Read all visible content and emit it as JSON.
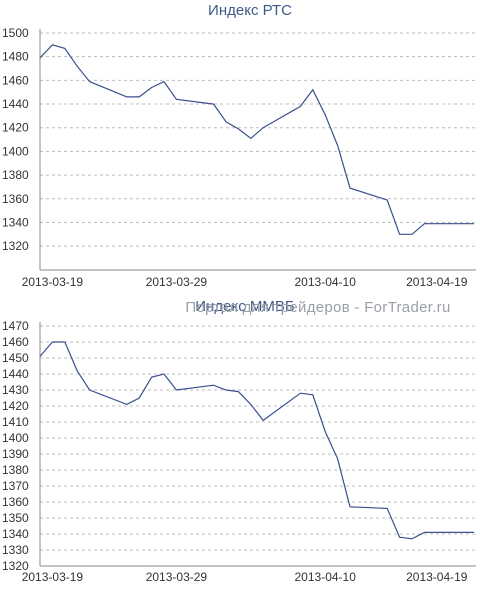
{
  "watermark": "Портал для трейдеров - ForTrader.ru",
  "chart_data": [
    {
      "type": "line",
      "title": "Индекс РТС",
      "x_tick_labels": [
        "2013-03-19",
        "2013-03-29",
        "2013-04-10",
        "2013-04-19"
      ],
      "x_tick_dates": [
        "2013-03-19",
        "2013-03-29",
        "2013-04-10",
        "2013-04-19"
      ],
      "ylim": [
        1310,
        1500
      ],
      "y_ticks": [
        1320,
        1340,
        1360,
        1380,
        1400,
        1420,
        1440,
        1460,
        1480,
        1500
      ],
      "grid": true,
      "series": [
        {
          "x": [
            "2013-03-18",
            "2013-03-19",
            "2013-03-20",
            "2013-03-21",
            "2013-03-22",
            "2013-03-25",
            "2013-03-26",
            "2013-03-27",
            "2013-03-28",
            "2013-03-29",
            "2013-04-01",
            "2013-04-02",
            "2013-04-03",
            "2013-04-04",
            "2013-04-05",
            "2013-04-08",
            "2013-04-09",
            "2013-04-10",
            "2013-04-11",
            "2013-04-12",
            "2013-04-15",
            "2013-04-16",
            "2013-04-17",
            "2013-04-18",
            "2013-04-19",
            "2013-04-22"
          ],
          "values": [
            1479,
            1490,
            1487,
            1472,
            1459,
            1446,
            1446,
            1454,
            1459,
            1444,
            1440,
            1425,
            1419,
            1411,
            1420,
            1438,
            1452,
            1431,
            1405,
            1369,
            1359,
            1330,
            1330,
            1339,
            1339,
            1339
          ]
        }
      ]
    },
    {
      "type": "line",
      "title": "Индекс ММВБ",
      "x_tick_labels": [
        "2013-03-19",
        "2013-03-29",
        "2013-04-10",
        "2013-04-19"
      ],
      "x_tick_dates": [
        "2013-03-19",
        "2013-03-29",
        "2013-04-10",
        "2013-04-19"
      ],
      "ylim": [
        1320,
        1470
      ],
      "y_ticks": [
        1320,
        1330,
        1340,
        1350,
        1360,
        1370,
        1380,
        1390,
        1400,
        1410,
        1420,
        1430,
        1440,
        1450,
        1460,
        1470
      ],
      "grid": true,
      "series": [
        {
          "x": [
            "2013-03-18",
            "2013-03-19",
            "2013-03-20",
            "2013-03-21",
            "2013-03-22",
            "2013-03-25",
            "2013-03-26",
            "2013-03-27",
            "2013-03-28",
            "2013-03-29",
            "2013-04-01",
            "2013-04-02",
            "2013-04-03",
            "2013-04-04",
            "2013-04-05",
            "2013-04-08",
            "2013-04-09",
            "2013-04-10",
            "2013-04-11",
            "2013-04-12",
            "2013-04-15",
            "2013-04-16",
            "2013-04-17",
            "2013-04-18",
            "2013-04-19",
            "2013-04-22"
          ],
          "values": [
            1451,
            1460,
            1460,
            1442,
            1430,
            1421,
            1425,
            1438,
            1440,
            1430,
            1433,
            1430,
            1429,
            1421,
            1411,
            1428,
            1427,
            1404,
            1387,
            1357,
            1356,
            1338,
            1337,
            1341,
            1341,
            1341
          ]
        }
      ]
    }
  ]
}
